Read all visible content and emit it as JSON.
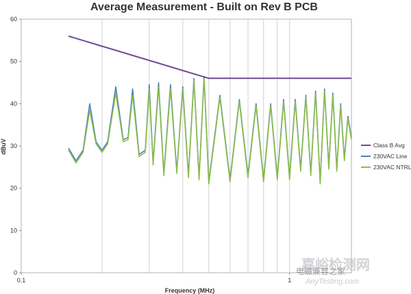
{
  "chart_data": {
    "type": "line",
    "title": "Average Measurement - Built on Rev B PCB",
    "xlabel": "Frequency (MHz)",
    "ylabel": "dBuV",
    "x_scale": "log",
    "xlim": [
      0.1,
      1.7
    ],
    "ylim": [
      0,
      60
    ],
    "x_ticks": [
      0.1,
      1
    ],
    "x_tick_labels": [
      "0.1",
      "1"
    ],
    "y_ticks": [
      0,
      10,
      20,
      30,
      40,
      50,
      60
    ],
    "y_tick_labels": [
      "0",
      "10",
      "20",
      "30",
      "40",
      "50",
      "60"
    ],
    "grid": "vertical log grid lines",
    "legend_position": "right",
    "series": [
      {
        "name": "Class B Avg",
        "color": "#6b4a8e",
        "x": [
          0.15,
          0.5,
          0.5,
          1.7
        ],
        "y": [
          56,
          46,
          46,
          46
        ]
      },
      {
        "name": "230VAC Line",
        "color": "#4a7ebb",
        "x": [
          0.15,
          0.16,
          0.17,
          0.18,
          0.19,
          0.2,
          0.21,
          0.225,
          0.24,
          0.25,
          0.26,
          0.275,
          0.29,
          0.3,
          0.31,
          0.325,
          0.34,
          0.36,
          0.38,
          0.4,
          0.42,
          0.44,
          0.46,
          0.48,
          0.5,
          0.55,
          0.6,
          0.65,
          0.7,
          0.75,
          0.8,
          0.85,
          0.9,
          0.95,
          1.0,
          1.05,
          1.1,
          1.15,
          1.2,
          1.25,
          1.3,
          1.35,
          1.4,
          1.45,
          1.5,
          1.55,
          1.6,
          1.65,
          1.7
        ],
        "y": [
          29.5,
          26.5,
          29,
          40,
          31,
          29,
          31,
          44,
          31.5,
          32,
          43.5,
          28,
          29,
          44.5,
          26,
          45,
          23.5,
          44.5,
          24,
          44,
          23,
          46,
          22.5,
          46.5,
          21.5,
          42,
          22,
          41,
          23,
          40,
          22,
          40,
          22.5,
          41,
          22.5,
          41,
          24.5,
          42,
          23.5,
          43,
          21.5,
          43.5,
          25,
          42.5,
          24.5,
          40,
          27,
          37,
          32
        ]
      },
      {
        "name": "230VAC NTRL",
        "color": "#8cbd4a",
        "x": [
          0.15,
          0.16,
          0.17,
          0.18,
          0.19,
          0.2,
          0.21,
          0.225,
          0.24,
          0.25,
          0.26,
          0.275,
          0.29,
          0.3,
          0.31,
          0.325,
          0.34,
          0.36,
          0.38,
          0.4,
          0.42,
          0.44,
          0.46,
          0.48,
          0.5,
          0.55,
          0.6,
          0.65,
          0.7,
          0.75,
          0.8,
          0.85,
          0.9,
          0.95,
          1.0,
          1.05,
          1.1,
          1.15,
          1.2,
          1.25,
          1.3,
          1.35,
          1.4,
          1.45,
          1.5,
          1.55,
          1.6,
          1.65,
          1.7
        ],
        "y": [
          29,
          26,
          28.5,
          38.5,
          30.5,
          28.5,
          30.5,
          42.5,
          31,
          31.5,
          42,
          27.5,
          28.5,
          43.5,
          25.5,
          44,
          23,
          43.5,
          23.5,
          43.5,
          22.5,
          45.5,
          22,
          46,
          21,
          41.5,
          21.5,
          40.5,
          22.5,
          39.5,
          21.5,
          39.5,
          22,
          40.5,
          22,
          40.5,
          24,
          41.5,
          23,
          42.5,
          21,
          43,
          24.5,
          42,
          24,
          39.5,
          26.5,
          36.5,
          31.5
        ]
      }
    ]
  },
  "watermark": {
    "line1": "嘉峪检测网",
    "line2": "AnyTesting.com",
    "line3": "电磁兼容之家"
  }
}
